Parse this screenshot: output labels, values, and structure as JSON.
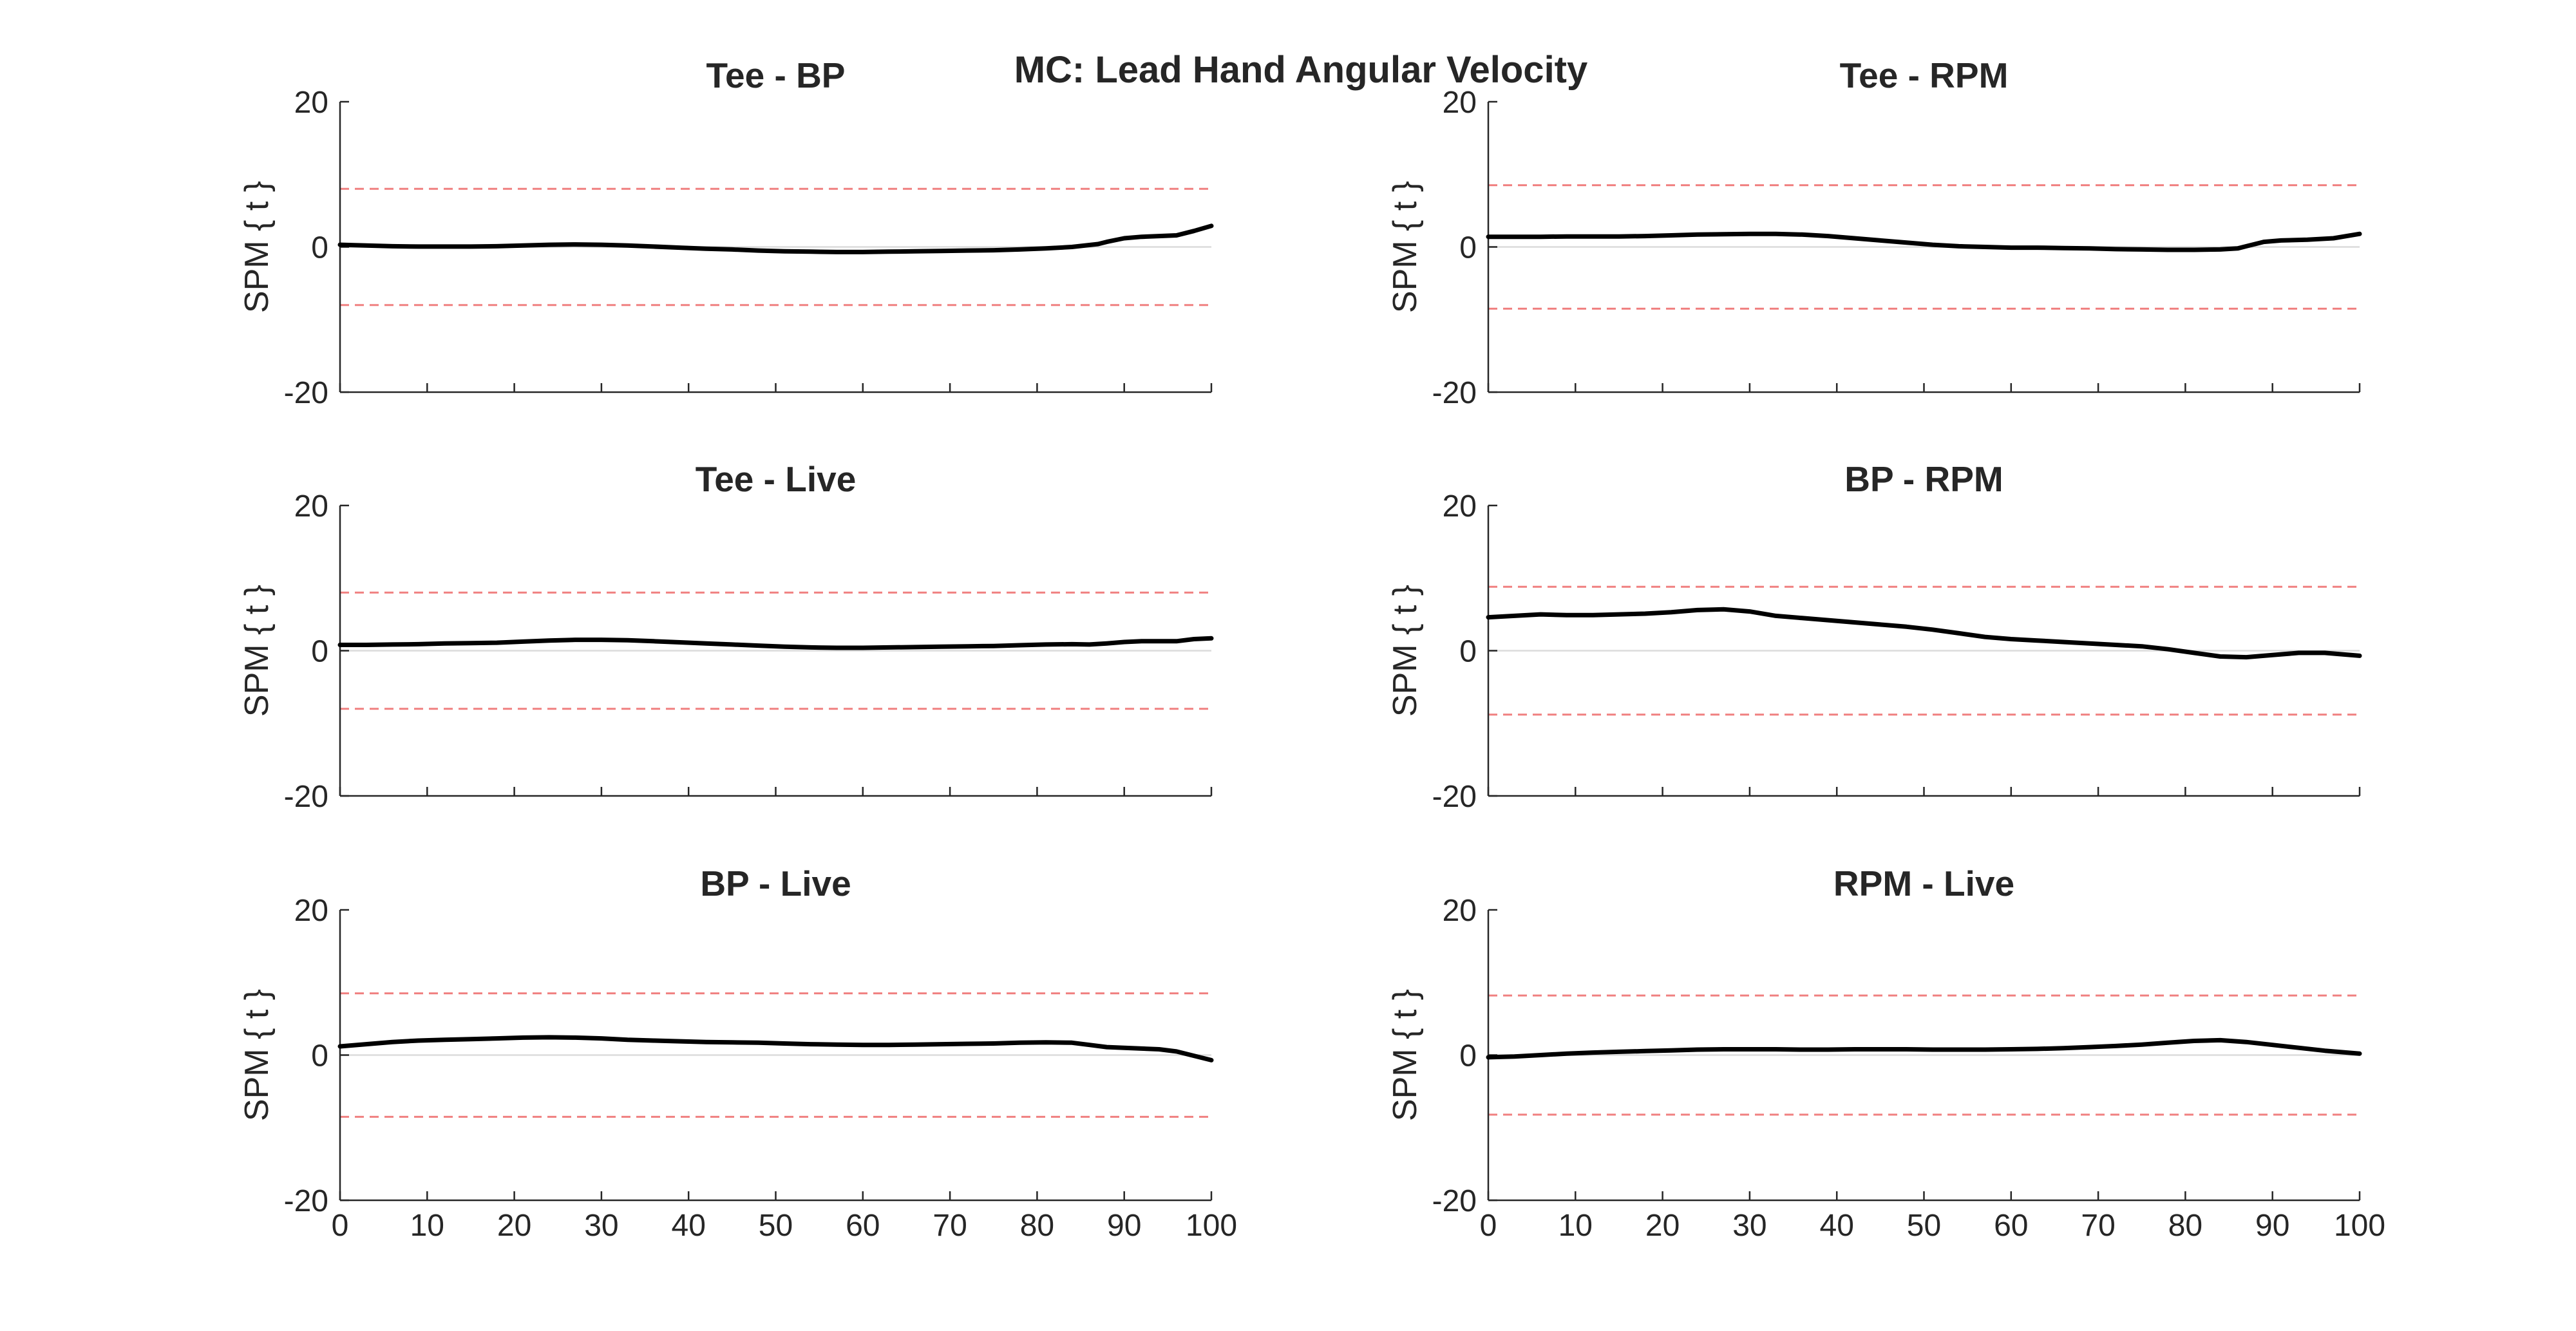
{
  "figure_title": "MC: Lead Hand Angular Velocity",
  "chart_data": [
    {
      "type": "line",
      "title": "Tee - BP",
      "xlabel": "",
      "ylabel": "SPM { t }",
      "xlim": [
        0,
        100
      ],
      "ylim": [
        -20,
        20
      ],
      "xticks": [
        "0",
        "10",
        "20",
        "30",
        "40",
        "50",
        "60",
        "70",
        "80",
        "90",
        "100"
      ],
      "yticks": [
        "20",
        "0",
        "-20"
      ],
      "show_xtick_labels": false,
      "threshold": 8.0,
      "x": [
        0,
        3,
        6,
        9,
        12,
        15,
        18,
        21,
        24,
        27,
        30,
        33,
        36,
        39,
        42,
        45,
        48,
        51,
        54,
        57,
        60,
        63,
        66,
        69,
        72,
        75,
        78,
        81,
        84,
        87,
        88,
        90,
        92,
        94,
        96,
        98,
        100
      ],
      "y": [
        0.3,
        0.2,
        0.1,
        0.05,
        0.05,
        0.05,
        0.1,
        0.2,
        0.3,
        0.35,
        0.3,
        0.2,
        0.05,
        -0.1,
        -0.25,
        -0.35,
        -0.5,
        -0.6,
        -0.65,
        -0.7,
        -0.7,
        -0.65,
        -0.6,
        -0.55,
        -0.5,
        -0.45,
        -0.35,
        -0.2,
        0.0,
        0.4,
        0.7,
        1.2,
        1.4,
        1.5,
        1.6,
        2.2,
        2.9
      ],
      "line_color": "#000000",
      "threshold_color": "#f08080"
    },
    {
      "type": "line",
      "title": "Tee - RPM",
      "xlabel": "",
      "ylabel": "SPM { t }",
      "xlim": [
        0,
        100
      ],
      "ylim": [
        -20,
        20
      ],
      "xticks": [
        "0",
        "10",
        "20",
        "30",
        "40",
        "50",
        "60",
        "70",
        "80",
        "90",
        "100"
      ],
      "yticks": [
        "20",
        "0",
        "-20"
      ],
      "show_xtick_labels": false,
      "threshold": 8.5,
      "x": [
        0,
        3,
        6,
        9,
        12,
        15,
        18,
        21,
        24,
        27,
        30,
        33,
        36,
        39,
        42,
        45,
        48,
        51,
        54,
        57,
        60,
        63,
        66,
        69,
        72,
        75,
        78,
        81,
        84,
        86,
        87,
        89,
        91,
        94,
        97,
        100
      ],
      "y": [
        1.4,
        1.4,
        1.4,
        1.45,
        1.45,
        1.45,
        1.5,
        1.6,
        1.7,
        1.75,
        1.8,
        1.8,
        1.7,
        1.5,
        1.2,
        0.9,
        0.6,
        0.3,
        0.1,
        0.0,
        -0.1,
        -0.1,
        -0.15,
        -0.2,
        -0.3,
        -0.35,
        -0.4,
        -0.4,
        -0.35,
        -0.2,
        0.1,
        0.7,
        0.9,
        1.0,
        1.2,
        1.8
      ],
      "line_color": "#000000",
      "threshold_color": "#f08080"
    },
    {
      "type": "line",
      "title": "Tee - Live",
      "xlabel": "",
      "ylabel": "SPM { t }",
      "xlim": [
        0,
        100
      ],
      "ylim": [
        -20,
        20
      ],
      "xticks": [
        "0",
        "10",
        "20",
        "30",
        "40",
        "50",
        "60",
        "70",
        "80",
        "90",
        "100"
      ],
      "yticks": [
        "20",
        "0",
        "-20"
      ],
      "show_xtick_labels": false,
      "threshold": 8.0,
      "x": [
        0,
        3,
        6,
        9,
        12,
        15,
        18,
        21,
        24,
        27,
        30,
        33,
        36,
        39,
        42,
        45,
        48,
        51,
        54,
        57,
        60,
        63,
        66,
        69,
        72,
        75,
        78,
        81,
        84,
        86,
        88,
        90,
        92,
        94,
        96,
        98,
        100
      ],
      "y": [
        0.8,
        0.8,
        0.85,
        0.9,
        1.0,
        1.05,
        1.1,
        1.25,
        1.4,
        1.5,
        1.5,
        1.45,
        1.3,
        1.15,
        1.0,
        0.85,
        0.7,
        0.55,
        0.45,
        0.4,
        0.4,
        0.45,
        0.5,
        0.55,
        0.6,
        0.65,
        0.75,
        0.85,
        0.9,
        0.85,
        1.0,
        1.2,
        1.3,
        1.3,
        1.3,
        1.6,
        1.7
      ],
      "line_color": "#000000",
      "threshold_color": "#f08080"
    },
    {
      "type": "line",
      "title": "BP - RPM",
      "xlabel": "",
      "ylabel": "SPM { t }",
      "xlim": [
        0,
        100
      ],
      "ylim": [
        -20,
        20
      ],
      "xticks": [
        "0",
        "10",
        "20",
        "30",
        "40",
        "50",
        "60",
        "70",
        "80",
        "90",
        "100"
      ],
      "yticks": [
        "20",
        "0",
        "-20"
      ],
      "show_xtick_labels": false,
      "threshold": 8.8,
      "x": [
        0,
        3,
        6,
        9,
        12,
        15,
        18,
        21,
        24,
        27,
        30,
        33,
        36,
        39,
        42,
        45,
        48,
        51,
        54,
        57,
        60,
        63,
        66,
        69,
        72,
        75,
        78,
        81,
        84,
        87,
        90,
        93,
        96,
        100
      ],
      "y": [
        4.6,
        4.8,
        5.0,
        4.9,
        4.9,
        5.0,
        5.1,
        5.3,
        5.6,
        5.7,
        5.4,
        4.8,
        4.5,
        4.2,
        3.9,
        3.6,
        3.3,
        2.9,
        2.4,
        1.9,
        1.6,
        1.4,
        1.2,
        1.0,
        0.8,
        0.6,
        0.2,
        -0.3,
        -0.8,
        -0.9,
        -0.6,
        -0.3,
        -0.3,
        -0.7
      ],
      "line_color": "#000000",
      "threshold_color": "#f08080"
    },
    {
      "type": "line",
      "title": "BP - Live",
      "xlabel": "",
      "ylabel": "SPM { t }",
      "xlim": [
        0,
        100
      ],
      "ylim": [
        -20,
        20
      ],
      "xticks": [
        "0",
        "10",
        "20",
        "30",
        "40",
        "50",
        "60",
        "70",
        "80",
        "90",
        "100"
      ],
      "yticks": [
        "20",
        "0",
        "-20"
      ],
      "show_xtick_labels": true,
      "threshold": 8.5,
      "x": [
        0,
        3,
        6,
        9,
        12,
        15,
        18,
        21,
        24,
        27,
        30,
        33,
        36,
        39,
        42,
        45,
        48,
        51,
        54,
        57,
        60,
        63,
        66,
        69,
        72,
        75,
        78,
        81,
        84,
        86,
        88,
        90,
        92,
        94,
        96,
        98,
        100
      ],
      "y": [
        1.2,
        1.5,
        1.8,
        2.0,
        2.1,
        2.2,
        2.3,
        2.4,
        2.45,
        2.4,
        2.3,
        2.1,
        2.0,
        1.9,
        1.8,
        1.75,
        1.7,
        1.6,
        1.5,
        1.45,
        1.4,
        1.4,
        1.45,
        1.5,
        1.55,
        1.6,
        1.7,
        1.75,
        1.7,
        1.4,
        1.1,
        1.0,
        0.9,
        0.8,
        0.5,
        -0.1,
        -0.7
      ],
      "line_color": "#000000",
      "threshold_color": "#f08080"
    },
    {
      "type": "line",
      "title": "RPM - Live",
      "xlabel": "",
      "ylabel": "SPM { t }",
      "xlim": [
        0,
        100
      ],
      "ylim": [
        -20,
        20
      ],
      "xticks": [
        "0",
        "10",
        "20",
        "30",
        "40",
        "50",
        "60",
        "70",
        "80",
        "90",
        "100"
      ],
      "yticks": [
        "20",
        "0",
        "-20"
      ],
      "show_xtick_labels": true,
      "threshold": 8.2,
      "x": [
        0,
        3,
        6,
        9,
        12,
        15,
        18,
        21,
        24,
        27,
        30,
        33,
        36,
        39,
        42,
        45,
        48,
        51,
        54,
        57,
        60,
        63,
        66,
        69,
        72,
        75,
        78,
        81,
        84,
        87,
        90,
        93,
        96,
        100
      ],
      "y": [
        -0.3,
        -0.2,
        0.0,
        0.2,
        0.35,
        0.45,
        0.55,
        0.65,
        0.75,
        0.8,
        0.8,
        0.8,
        0.75,
        0.75,
        0.8,
        0.8,
        0.8,
        0.75,
        0.75,
        0.75,
        0.8,
        0.85,
        0.95,
        1.1,
        1.25,
        1.45,
        1.7,
        1.95,
        2.05,
        1.8,
        1.4,
        1.0,
        0.6,
        0.2
      ],
      "line_color": "#000000",
      "threshold_color": "#f08080"
    }
  ]
}
